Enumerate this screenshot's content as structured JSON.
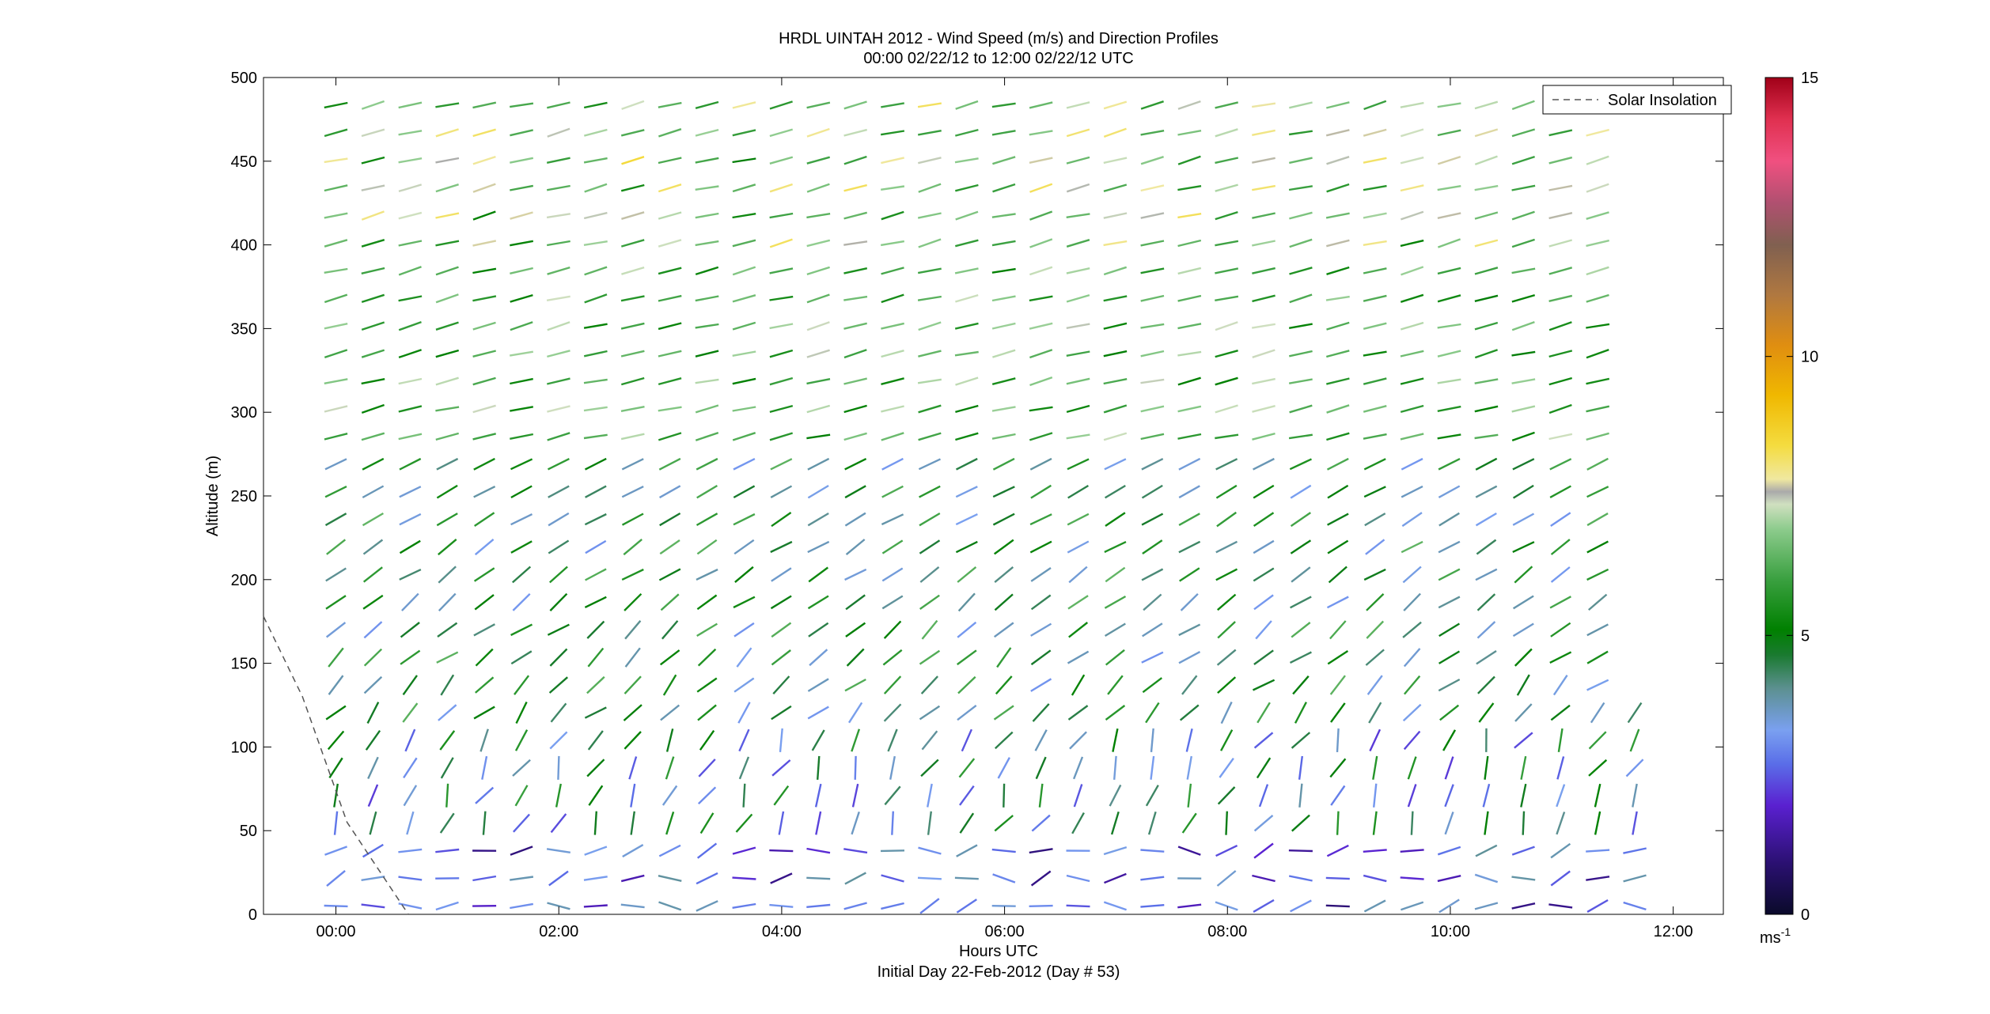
{
  "chart_data": {
    "type": "wind-barb",
    "title_line1": "HRDL UINTAH 2012 - Wind Speed (m/s) and Direction Profiles",
    "title_line2": "00:00 02/22/12 to 12:00 02/22/12  UTC",
    "xlabel": "Hours UTC",
    "xlabel2": "Initial Day 22-Feb-2012 (Day # 53)",
    "ylabel": "Altitude (m)",
    "x_range_hours": [
      -0.65,
      12.45
    ],
    "y_range_m": [
      0,
      500
    ],
    "x_ticks": [
      {
        "value": 0,
        "label": "00:00"
      },
      {
        "value": 2,
        "label": "02:00"
      },
      {
        "value": 4,
        "label": "04:00"
      },
      {
        "value": 6,
        "label": "06:00"
      },
      {
        "value": 8,
        "label": "08:00"
      },
      {
        "value": 10,
        "label": "10:00"
      },
      {
        "value": 12,
        "label": "12:00"
      }
    ],
    "y_ticks": [
      {
        "value": 0,
        "label": "0"
      },
      {
        "value": 50,
        "label": "50"
      },
      {
        "value": 100,
        "label": "100"
      },
      {
        "value": 150,
        "label": "150"
      },
      {
        "value": 200,
        "label": "200"
      },
      {
        "value": 250,
        "label": "250"
      },
      {
        "value": 300,
        "label": "300"
      },
      {
        "value": 350,
        "label": "350"
      },
      {
        "value": 400,
        "label": "400"
      },
      {
        "value": 450,
        "label": "450"
      },
      {
        "value": 500,
        "label": "500"
      }
    ],
    "legend": {
      "label": "Solar Insolation",
      "placement": "top-right"
    },
    "colorbar": {
      "range": [
        0,
        15
      ],
      "ticks": [
        {
          "value": 0,
          "label": "0"
        },
        {
          "value": 5,
          "label": "5"
        },
        {
          "value": 10,
          "label": "10"
        },
        {
          "value": 15,
          "label": "15"
        }
      ],
      "unit_label": "ms",
      "unit_exponent": "-1"
    },
    "solar_insolation": {
      "x_hours": [
        -0.65,
        -0.3,
        0.1,
        0.65
      ],
      "altitude_m": [
        178,
        130,
        55,
        0
      ]
    },
    "profiles": {
      "x_start_hours": 0,
      "x_step_hours": 0.333,
      "x_count": 36,
      "altitude_start_m": 5,
      "altitude_step_m": 16.5,
      "altitude_count": 30,
      "note": "wind speeds 0-8 m/s, direction mostly westerly aloft"
    }
  }
}
